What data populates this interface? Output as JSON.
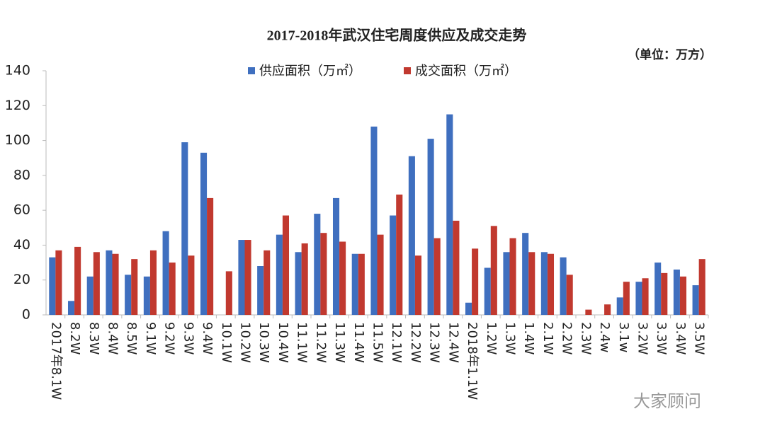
{
  "chart_data": {
    "type": "bar",
    "title": "2017-2018年武汉住宅周度供应及成交走势",
    "unit_note": "（单位：万方）",
    "watermark": "大家顾问",
    "categories": [
      "2017年8.1W",
      "8.2W",
      "8.3W",
      "8.4W",
      "8.5W",
      "9.1W",
      "9.2W",
      "9.3W",
      "9.4W",
      "10.1W",
      "10.2W",
      "10.3W",
      "10.4W",
      "11.1W",
      "11.2W",
      "11.3W",
      "11.4W",
      "11.5W",
      "12.1W",
      "12.2W",
      "12.3W",
      "12.4W",
      "2018年1.1W",
      "1.2W",
      "1.3W",
      "1.4W",
      "2.1W",
      "2.2W",
      "2.3W",
      "2.4w",
      "3.1w",
      "3.2W",
      "3.3W",
      "3.4W",
      "3.5W"
    ],
    "series": [
      {
        "name": "供应面积（万㎡）",
        "color": "#3f6fbf",
        "values": [
          33,
          8,
          22,
          37,
          23,
          22,
          48,
          99,
          93,
          null,
          43,
          28,
          46,
          36,
          58,
          67,
          35,
          108,
          57,
          91,
          101,
          115,
          7,
          27,
          36,
          47,
          36,
          33,
          null,
          null,
          10,
          19,
          30,
          26,
          17
        ]
      },
      {
        "name": "成交面积（万㎡）",
        "color": "#c1392f",
        "values": [
          37,
          39,
          36,
          35,
          32,
          37,
          30,
          34,
          67,
          25,
          43,
          37,
          57,
          41,
          47,
          42,
          35,
          46,
          69,
          34,
          44,
          54,
          38,
          51,
          44,
          36,
          35,
          23,
          3,
          6,
          19,
          21,
          24,
          22,
          32
        ]
      }
    ],
    "ylim": [
      0,
      140
    ],
    "yticks": [
      0,
      20,
      40,
      60,
      80,
      100,
      120,
      140
    ],
    "grid": false,
    "legend": "top"
  }
}
